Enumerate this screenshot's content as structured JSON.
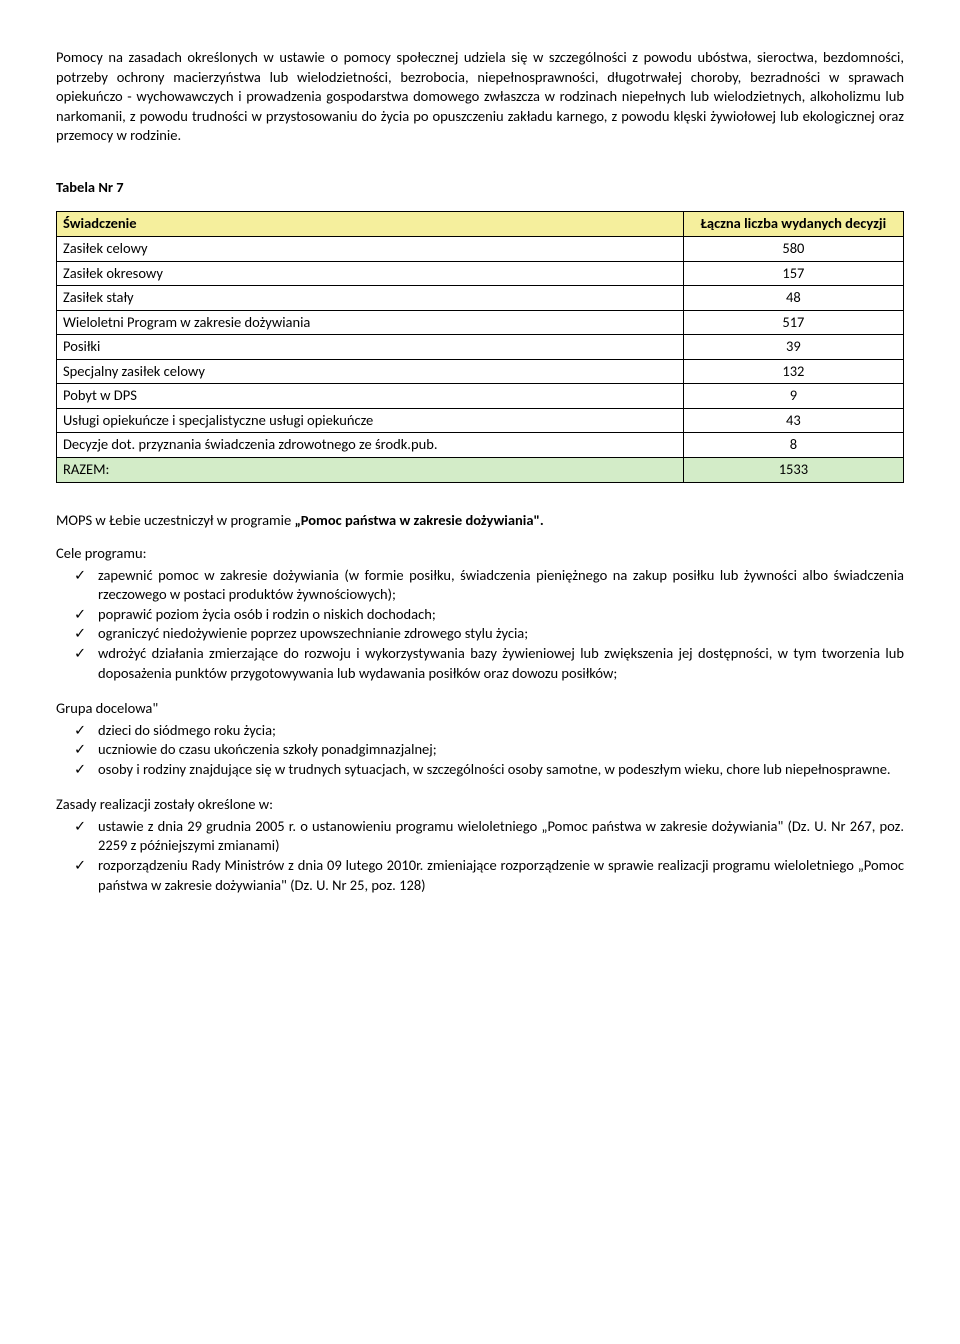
{
  "intro_paragraph": "Pomocy na zasadach określonych w ustawie o pomocy społecznej udziela się w szczególności z powodu ubóstwa, sieroctwa, bezdomności, potrzeby ochrony macierzyństwa lub wielodzietności, bezrobocia, niepełnosprawności, długotrwałej choroby, bezradności w sprawach opiekuńczo - wychowawczych i prowadzenia gospodarstwa domowego zwłaszcza w rodzinach niepełnych lub wielodzietnych, alkoholizmu lub narkomanii, z powodu trudności w przystosowaniu do życia po opuszczeniu zakładu karnego, z powodu klęski żywiołowej lub ekologicznej oraz  przemocy w rodzinie.",
  "table_title": "Tabela Nr 7",
  "table": {
    "header": {
      "col1": "Świadczenie",
      "col2": "Łączna liczba wydanych decyzji",
      "bg": "#f5ef9d"
    },
    "rows": [
      {
        "label": "Zasiłek celowy",
        "value": "580"
      },
      {
        "label": "Zasiłek okresowy",
        "value": "157"
      },
      {
        "label": "Zasiłek stały",
        "value": "48"
      },
      {
        "label": "Wieloletni Program w zakresie dożywiania",
        "value": "517"
      },
      {
        "label": "Posiłki",
        "value": "39"
      },
      {
        "label": "Specjalny zasiłek celowy",
        "value": "132"
      },
      {
        "label": "Pobyt w DPS",
        "value": "9"
      },
      {
        "label": "Usługi opiekuńcze i specjalistyczne usługi opiekuńcze",
        "value": "43"
      },
      {
        "label": "Decyzje dot. przyznania świadczenia zdrowotnego ze środk.pub.",
        "value": "8"
      }
    ],
    "total": {
      "label": "RAZEM:",
      "value": "1533",
      "bg": "#d3ecc8"
    }
  },
  "program_line_prefix": "MOPS w Łebie uczestniczył w programie ",
  "program_line_bold": "„Pomoc państwa w zakresie dożywiania\".",
  "goals_heading": "Cele programu:",
  "goals": [
    "zapewnić pomoc w zakresie dożywiania (w formie posiłku, świadczenia pieniężnego na zakup posiłku lub żywności albo świadczenia rzeczowego w postaci produktów żywnościowych);",
    "poprawić poziom życia osób i rodzin o niskich dochodach;",
    "ograniczyć niedożywienie poprzez upowszechnianie zdrowego stylu życia;",
    "wdrożyć działania zmierzające do rozwoju i wykorzystywania bazy żywieniowej lub zwiększenia jej dostępności, w tym tworzenia lub doposażenia punktów przygotowywania lub wydawania posiłków oraz dowozu posiłków;"
  ],
  "target_heading": "Grupa docelowa\"",
  "target": [
    "dzieci do siódmego roku życia;",
    "uczniowie do czasu ukończenia szkoły ponadgimnazjalnej;",
    "osoby i rodziny znajdujące się w trudnych sytuacjach, w szczególności osoby samotne, w podeszłym wieku, chore lub niepełnosprawne."
  ],
  "rules_heading": "Zasady realizacji zostały określone w:",
  "rules": [
    "ustawie z dnia 29 grudnia 2005 r. o ustanowieniu programu wieloletniego „Pomoc państwa w zakresie dożywiania\" (Dz. U. Nr 267, poz. 2259 z późniejszymi zmianami)",
    "rozporządzeniu Rady Ministrów z dnia 09 lutego 2010r. zmieniające rozporządzenie w sprawie realizacji programu wieloletniego „Pomoc państwa w zakresie dożywiania\" (Dz. U. Nr 25, poz. 128)"
  ]
}
